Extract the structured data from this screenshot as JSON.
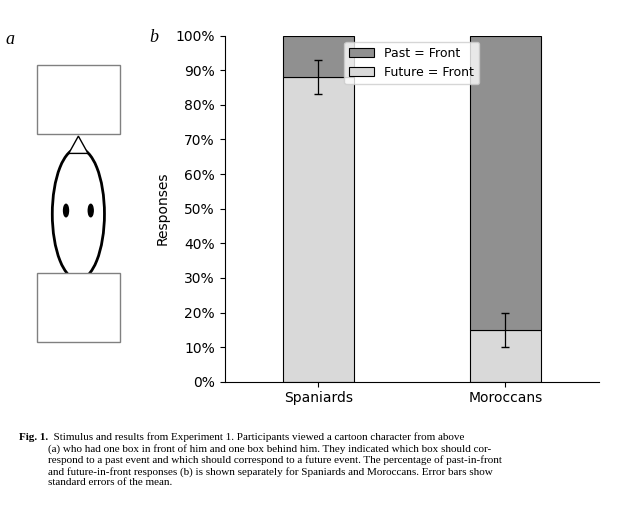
{
  "chart_data": {
    "type": "bar",
    "stacked": true,
    "categories": [
      "Spaniards",
      "Moroccans"
    ],
    "series": [
      {
        "name": "Future = Front",
        "color": "#d9d9d9",
        "values": [
          0.88,
          0.15
        ],
        "errors": [
          0.05,
          0.05
        ]
      },
      {
        "name": "Past = Front",
        "color": "#909090",
        "values": [
          0.12,
          0.85
        ]
      }
    ],
    "ylabel": "Responses",
    "ylim": [
      0.0,
      1.0
    ],
    "yticks": [
      {
        "value": 0.0,
        "label": "0%"
      },
      {
        "value": 0.1,
        "label": "10%"
      },
      {
        "value": 0.2,
        "label": "20%"
      },
      {
        "value": 0.3,
        "label": "30%"
      },
      {
        "value": 0.4,
        "label": "40%"
      },
      {
        "value": 0.5,
        "label": "50%"
      },
      {
        "value": 0.6,
        "label": "60%"
      },
      {
        "value": 0.7,
        "label": "70%"
      },
      {
        "value": 0.8,
        "label": "80%"
      },
      {
        "value": 0.9,
        "label": "90%"
      },
      {
        "value": 1.0,
        "label": "100%"
      }
    ],
    "legend": "upper center",
    "grid": false,
    "annotations": [
      "a",
      "b",
      "Fig. 1.",
      "  Stimulus and results from Experiment 1. Participants viewed a cartoon character from above\n(a) who had one box in front of him and one box behind him. They indicated which box should cor-\nrespond to a past event and which should correspond to a future event. The percentage of past-in-front\nand future-in-front responses (b) is shown separately for Spaniards and Moroccans. Error bars show\nstandard errors of the mean."
    ]
  }
}
